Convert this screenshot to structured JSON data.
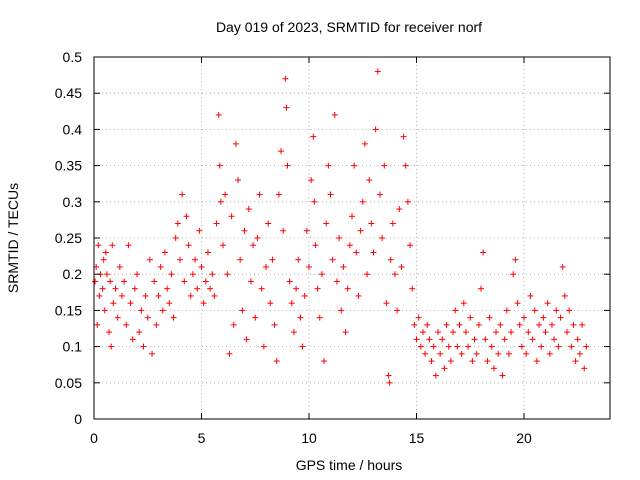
{
  "chart_data": {
    "type": "scatter",
    "title": "Day 019 of 2023, SRMTID for receiver norf",
    "xlabel": "GPS time / hours",
    "ylabel": "SRMTID / TECUs",
    "xlim": [
      0,
      24
    ],
    "ylim": [
      0,
      0.5
    ],
    "xticks": [
      0,
      5,
      10,
      15,
      20
    ],
    "xtick_labels": [
      "0",
      "5",
      "10",
      "15",
      "20"
    ],
    "yticks": [
      0,
      0.05,
      0.1,
      0.15,
      0.2,
      0.25,
      0.3,
      0.35,
      0.4,
      0.45,
      0.5
    ],
    "ytick_labels": [
      "0",
      "0.05",
      "0.1",
      "0.15",
      "0.2",
      "0.25",
      "0.3",
      "0.35",
      "0.4",
      "0.45",
      "0.5"
    ],
    "grid": true,
    "marker": "plus",
    "color": "#ff0000",
    "points": [
      [
        0.05,
        0.19
      ],
      [
        0.1,
        0.21
      ],
      [
        0.15,
        0.13
      ],
      [
        0.2,
        0.24
      ],
      [
        0.25,
        0.17
      ],
      [
        0.3,
        0.2
      ],
      [
        0.4,
        0.18
      ],
      [
        0.45,
        0.22
      ],
      [
        0.5,
        0.15
      ],
      [
        0.55,
        0.23
      ],
      [
        0.6,
        0.2
      ],
      [
        0.7,
        0.12
      ],
      [
        0.75,
        0.19
      ],
      [
        0.8,
        0.1
      ],
      [
        0.85,
        0.24
      ],
      [
        0.9,
        0.16
      ],
      [
        1.0,
        0.18
      ],
      [
        1.1,
        0.14
      ],
      [
        1.2,
        0.21
      ],
      [
        1.3,
        0.17
      ],
      [
        1.4,
        0.19
      ],
      [
        1.5,
        0.13
      ],
      [
        1.6,
        0.24
      ],
      [
        1.7,
        0.16
      ],
      [
        1.8,
        0.11
      ],
      [
        1.9,
        0.18
      ],
      [
        2.0,
        0.2
      ],
      [
        2.1,
        0.12
      ],
      [
        2.2,
        0.15
      ],
      [
        2.3,
        0.1
      ],
      [
        2.4,
        0.17
      ],
      [
        2.5,
        0.14
      ],
      [
        2.6,
        0.22
      ],
      [
        2.7,
        0.09
      ],
      [
        2.8,
        0.19
      ],
      [
        2.9,
        0.13
      ],
      [
        3.0,
        0.17
      ],
      [
        3.1,
        0.21
      ],
      [
        3.2,
        0.15
      ],
      [
        3.3,
        0.23
      ],
      [
        3.4,
        0.18
      ],
      [
        3.5,
        0.16
      ],
      [
        3.6,
        0.2
      ],
      [
        3.7,
        0.14
      ],
      [
        3.8,
        0.25
      ],
      [
        3.9,
        0.27
      ],
      [
        4.0,
        0.22
      ],
      [
        4.1,
        0.31
      ],
      [
        4.2,
        0.19
      ],
      [
        4.3,
        0.28
      ],
      [
        4.4,
        0.24
      ],
      [
        4.5,
        0.17
      ],
      [
        4.6,
        0.2
      ],
      [
        4.7,
        0.22
      ],
      [
        4.8,
        0.18
      ],
      [
        4.9,
        0.26
      ],
      [
        5.0,
        0.21
      ],
      [
        5.1,
        0.16
      ],
      [
        5.2,
        0.19
      ],
      [
        5.3,
        0.23
      ],
      [
        5.4,
        0.18
      ],
      [
        5.5,
        0.2
      ],
      [
        5.6,
        0.17
      ],
      [
        5.7,
        0.27
      ],
      [
        5.8,
        0.42
      ],
      [
        5.85,
        0.35
      ],
      [
        5.9,
        0.3
      ],
      [
        6.0,
        0.24
      ],
      [
        6.1,
        0.31
      ],
      [
        6.2,
        0.2
      ],
      [
        6.3,
        0.09
      ],
      [
        6.4,
        0.28
      ],
      [
        6.5,
        0.13
      ],
      [
        6.6,
        0.38
      ],
      [
        6.7,
        0.33
      ],
      [
        6.8,
        0.22
      ],
      [
        6.9,
        0.15
      ],
      [
        7.0,
        0.26
      ],
      [
        7.1,
        0.11
      ],
      [
        7.2,
        0.29
      ],
      [
        7.3,
        0.19
      ],
      [
        7.4,
        0.24
      ],
      [
        7.5,
        0.14
      ],
      [
        7.6,
        0.25
      ],
      [
        7.7,
        0.31
      ],
      [
        7.8,
        0.18
      ],
      [
        7.9,
        0.1
      ],
      [
        8.0,
        0.21
      ],
      [
        8.1,
        0.27
      ],
      [
        8.2,
        0.16
      ],
      [
        8.3,
        0.22
      ],
      [
        8.4,
        0.13
      ],
      [
        8.5,
        0.08
      ],
      [
        8.6,
        0.31
      ],
      [
        8.7,
        0.37
      ],
      [
        8.8,
        0.26
      ],
      [
        8.9,
        0.47
      ],
      [
        8.95,
        0.43
      ],
      [
        9.0,
        0.35
      ],
      [
        9.1,
        0.19
      ],
      [
        9.2,
        0.16
      ],
      [
        9.3,
        0.12
      ],
      [
        9.4,
        0.18
      ],
      [
        9.5,
        0.22
      ],
      [
        9.6,
        0.14
      ],
      [
        9.7,
        0.1
      ],
      [
        9.8,
        0.17
      ],
      [
        9.9,
        0.26
      ],
      [
        10.0,
        0.21
      ],
      [
        10.1,
        0.33
      ],
      [
        10.2,
        0.39
      ],
      [
        10.25,
        0.3
      ],
      [
        10.3,
        0.24
      ],
      [
        10.4,
        0.18
      ],
      [
        10.5,
        0.14
      ],
      [
        10.6,
        0.2
      ],
      [
        10.7,
        0.08
      ],
      [
        10.8,
        0.27
      ],
      [
        10.9,
        0.35
      ],
      [
        11.0,
        0.31
      ],
      [
        11.1,
        0.22
      ],
      [
        11.2,
        0.42
      ],
      [
        11.3,
        0.19
      ],
      [
        11.4,
        0.25
      ],
      [
        11.5,
        0.15
      ],
      [
        11.6,
        0.21
      ],
      [
        11.7,
        0.12
      ],
      [
        11.8,
        0.18
      ],
      [
        11.9,
        0.24
      ],
      [
        12.0,
        0.28
      ],
      [
        12.1,
        0.35
      ],
      [
        12.2,
        0.23
      ],
      [
        12.3,
        0.17
      ],
      [
        12.4,
        0.26
      ],
      [
        12.5,
        0.3
      ],
      [
        12.6,
        0.38
      ],
      [
        12.7,
        0.2
      ],
      [
        12.8,
        0.33
      ],
      [
        12.9,
        0.27
      ],
      [
        13.0,
        0.23
      ],
      [
        13.1,
        0.4
      ],
      [
        13.2,
        0.48
      ],
      [
        13.3,
        0.31
      ],
      [
        13.4,
        0.25
      ],
      [
        13.5,
        0.35
      ],
      [
        13.6,
        0.16
      ],
      [
        13.7,
        0.06
      ],
      [
        13.75,
        0.05
      ],
      [
        13.8,
        0.22
      ],
      [
        13.9,
        0.27
      ],
      [
        14.0,
        0.2
      ],
      [
        14.1,
        0.15
      ],
      [
        14.2,
        0.29
      ],
      [
        14.3,
        0.21
      ],
      [
        14.4,
        0.39
      ],
      [
        14.5,
        0.35
      ],
      [
        14.6,
        0.3
      ],
      [
        14.7,
        0.24
      ],
      [
        14.8,
        0.18
      ],
      [
        14.9,
        0.13
      ],
      [
        15.0,
        0.11
      ],
      [
        15.1,
        0.14
      ],
      [
        15.2,
        0.1
      ],
      [
        15.3,
        0.12
      ],
      [
        15.4,
        0.09
      ],
      [
        15.5,
        0.13
      ],
      [
        15.6,
        0.11
      ],
      [
        15.7,
        0.08
      ],
      [
        15.8,
        0.1
      ],
      [
        15.9,
        0.06
      ],
      [
        16.0,
        0.12
      ],
      [
        16.1,
        0.09
      ],
      [
        16.2,
        0.11
      ],
      [
        16.3,
        0.07
      ],
      [
        16.4,
        0.13
      ],
      [
        16.5,
        0.1
      ],
      [
        16.6,
        0.08
      ],
      [
        16.7,
        0.12
      ],
      [
        16.8,
        0.15
      ],
      [
        16.9,
        0.1
      ],
      [
        17.0,
        0.13
      ],
      [
        17.1,
        0.09
      ],
      [
        17.2,
        0.16
      ],
      [
        17.3,
        0.12
      ],
      [
        17.4,
        0.1
      ],
      [
        17.5,
        0.14
      ],
      [
        17.6,
        0.08
      ],
      [
        17.7,
        0.11
      ],
      [
        17.8,
        0.09
      ],
      [
        17.9,
        0.13
      ],
      [
        18.0,
        0.18
      ],
      [
        18.1,
        0.23
      ],
      [
        18.2,
        0.11
      ],
      [
        18.3,
        0.08
      ],
      [
        18.4,
        0.14
      ],
      [
        18.5,
        0.1
      ],
      [
        18.6,
        0.07
      ],
      [
        18.7,
        0.12
      ],
      [
        18.8,
        0.09
      ],
      [
        18.9,
        0.13
      ],
      [
        19.0,
        0.06
      ],
      [
        19.1,
        0.11
      ],
      [
        19.2,
        0.15
      ],
      [
        19.3,
        0.09
      ],
      [
        19.4,
        0.12
      ],
      [
        19.5,
        0.2
      ],
      [
        19.6,
        0.22
      ],
      [
        19.7,
        0.16
      ],
      [
        19.8,
        0.13
      ],
      [
        19.9,
        0.1
      ],
      [
        20.0,
        0.14
      ],
      [
        20.1,
        0.09
      ],
      [
        20.2,
        0.12
      ],
      [
        20.3,
        0.17
      ],
      [
        20.4,
        0.11
      ],
      [
        20.5,
        0.15
      ],
      [
        20.6,
        0.08
      ],
      [
        20.7,
        0.13
      ],
      [
        20.8,
        0.1
      ],
      [
        20.9,
        0.14
      ],
      [
        21.0,
        0.12
      ],
      [
        21.1,
        0.16
      ],
      [
        21.2,
        0.09
      ],
      [
        21.3,
        0.13
      ],
      [
        21.4,
        0.11
      ],
      [
        21.5,
        0.15
      ],
      [
        21.6,
        0.1
      ],
      [
        21.7,
        0.14
      ],
      [
        21.8,
        0.21
      ],
      [
        21.9,
        0.17
      ],
      [
        22.0,
        0.12
      ],
      [
        22.1,
        0.15
      ],
      [
        22.2,
        0.1
      ],
      [
        22.3,
        0.13
      ],
      [
        22.4,
        0.08
      ],
      [
        22.5,
        0.11
      ],
      [
        22.6,
        0.09
      ],
      [
        22.7,
        0.13
      ],
      [
        22.8,
        0.07
      ],
      [
        22.9,
        0.1
      ]
    ]
  }
}
